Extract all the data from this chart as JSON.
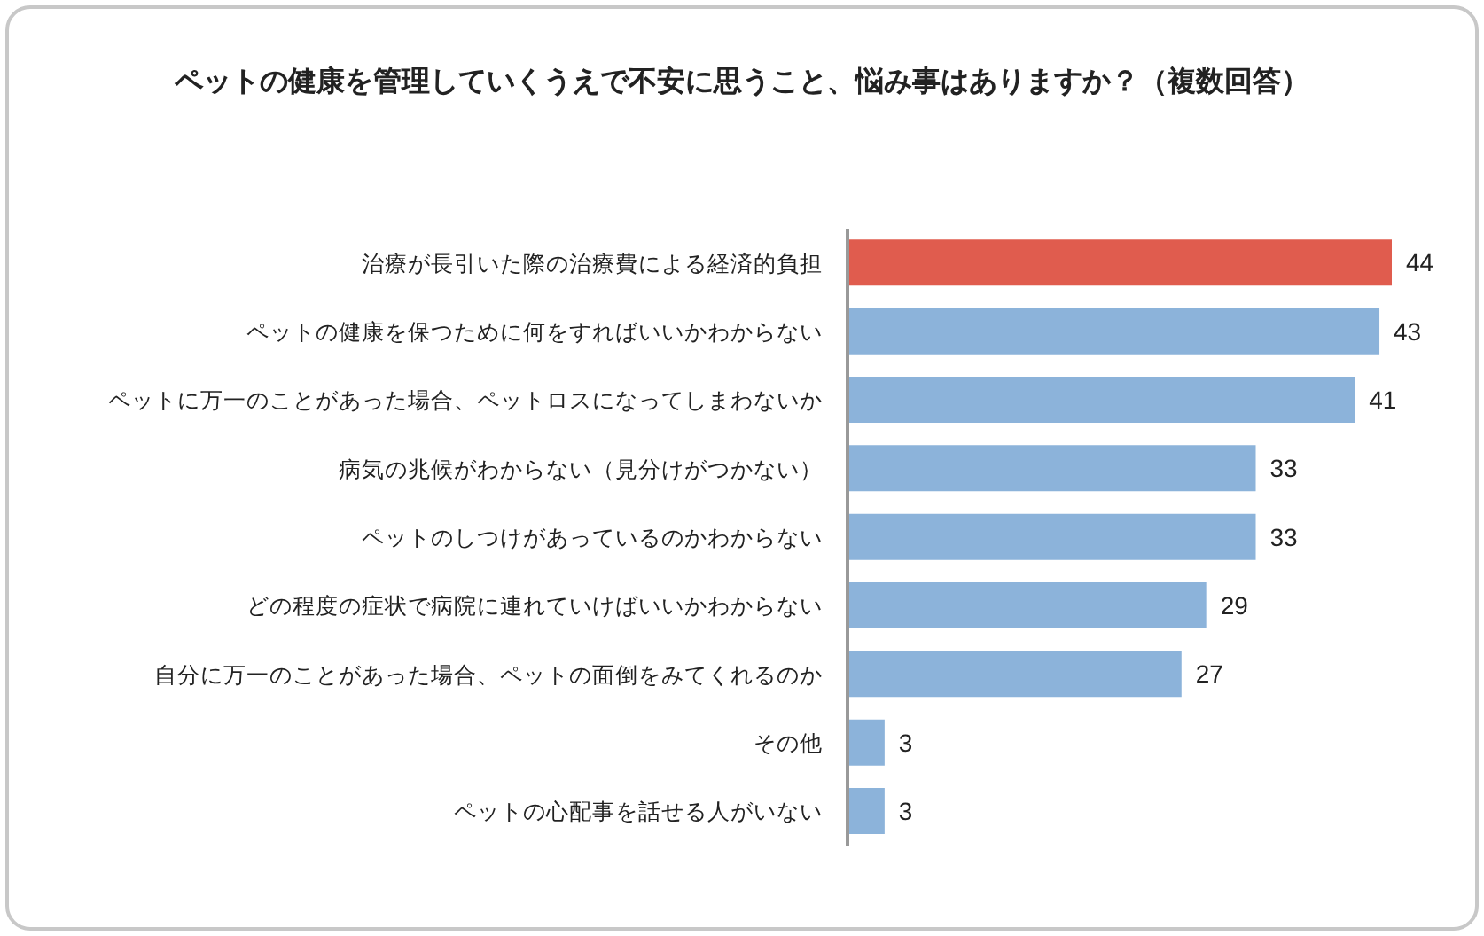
{
  "chart_data": {
    "type": "bar",
    "orientation": "horizontal",
    "title": "ペットの健康を管理していくうえで不安に思うこと、悩み事はありますか？（複数回答）",
    "categories": [
      "治療が長引いた際の治療費による経済的負担",
      "ペットの健康を保つために何をすればいいかわからない",
      "ペットに万一のことがあった場合、ペットロスになってしまわないか",
      "病気の兆候がわからない（見分けがつかない）",
      "ペットのしつけがあっているのかわからない",
      "どの程度の症状で病院に連れていけばいいかわからない",
      "自分に万一のことがあった場合、ペットの面倒をみてくれるのか",
      "その他",
      "ペットの心配事を話せる人がいない"
    ],
    "values": [
      44,
      43,
      41,
      33,
      33,
      29,
      27,
      3,
      3
    ],
    "colors": [
      "#e05c4e",
      "#8cb3da",
      "#8cb3da",
      "#8cb3da",
      "#8cb3da",
      "#8cb3da",
      "#8cb3da",
      "#8cb3da",
      "#8cb3da"
    ],
    "data_labels": true
  }
}
